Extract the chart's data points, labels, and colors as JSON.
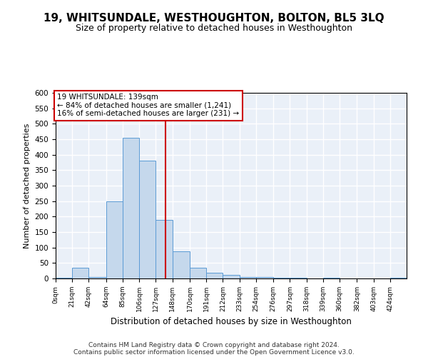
{
  "title": "19, WHITSUNDALE, WESTHOUGHTON, BOLTON, BL5 3LQ",
  "subtitle": "Size of property relative to detached houses in Westhoughton",
  "xlabel": "Distribution of detached houses by size in Westhoughton",
  "ylabel": "Number of detached properties",
  "footnote1": "Contains HM Land Registry data © Crown copyright and database right 2024.",
  "footnote2": "Contains public sector information licensed under the Open Government Licence v3.0.",
  "annotation_line1": "19 WHITSUNDALE: 139sqm",
  "annotation_line2": "← 84% of detached houses are smaller (1,241)",
  "annotation_line3": "16% of semi-detached houses are larger (231) →",
  "bar_color": "#c5d8ec",
  "bar_edge_color": "#5b9bd5",
  "vline_x": 139,
  "vline_color": "#cc0000",
  "categories": [
    "0sqm",
    "21sqm",
    "42sqm",
    "64sqm",
    "85sqm",
    "106sqm",
    "127sqm",
    "148sqm",
    "170sqm",
    "191sqm",
    "212sqm",
    "233sqm",
    "254sqm",
    "276sqm",
    "297sqm",
    "318sqm",
    "339sqm",
    "360sqm",
    "382sqm",
    "403sqm",
    "424sqm"
  ],
  "bin_edges": [
    0,
    21,
    42,
    64,
    85,
    106,
    127,
    148,
    170,
    191,
    212,
    233,
    254,
    276,
    297,
    318,
    339,
    360,
    382,
    403,
    424,
    445
  ],
  "values": [
    2,
    35,
    5,
    250,
    455,
    380,
    190,
    88,
    35,
    18,
    12,
    5,
    5,
    3,
    2,
    0,
    2,
    0,
    0,
    0,
    2
  ],
  "ylim": [
    0,
    600
  ],
  "yticks": [
    0,
    50,
    100,
    150,
    200,
    250,
    300,
    350,
    400,
    450,
    500,
    550,
    600
  ],
  "bg_color": "#eaf0f8",
  "grid_color": "#ffffff",
  "title_fontsize": 11,
  "subtitle_fontsize": 9
}
